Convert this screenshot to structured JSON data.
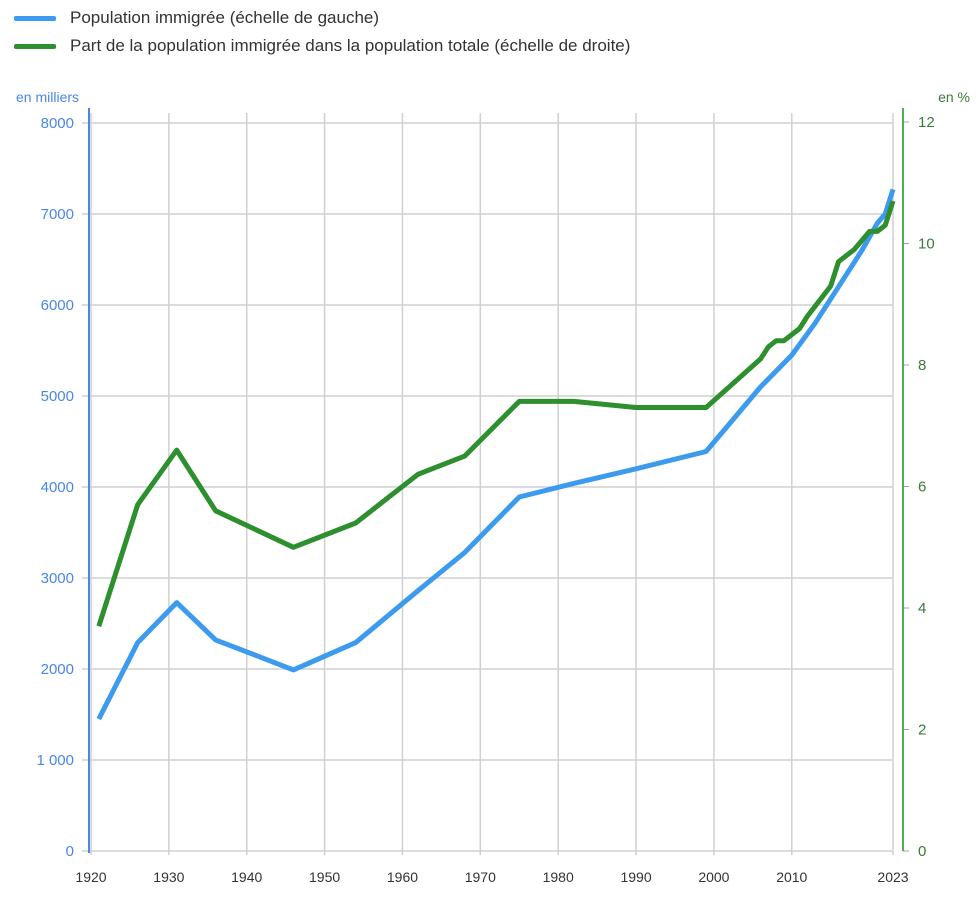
{
  "chart_data": {
    "type": "line",
    "title": "",
    "xlabel": "",
    "ylabel_left": "en milliers",
    "ylabel_right": "en %",
    "xlim": [
      1920,
      2023
    ],
    "ylim_left": [
      0,
      8000
    ],
    "ylim_right": [
      0,
      12
    ],
    "x_ticks": [
      "1920",
      "1930",
      "1940",
      "1950",
      "1960",
      "1970",
      "1980",
      "1990",
      "2000",
      "2010",
      "2023"
    ],
    "y_ticks_left": [
      "0",
      "1 000",
      "2000",
      "3000",
      "4000",
      "5000",
      "6000",
      "7000",
      "8000"
    ],
    "y_ticks_right": [
      "0",
      "2",
      "4",
      "6",
      "8",
      "10",
      "12"
    ],
    "grid": true,
    "legend_position": "top-left",
    "series": [
      {
        "name": "Population immigrée (échelle de gauche)",
        "axis": "left",
        "color": "#3d9bef",
        "x": [
          1921,
          1926,
          1931,
          1936,
          1946,
          1954,
          1962,
          1968,
          1975,
          1982,
          1990,
          1999,
          2006,
          2010,
          2013,
          2016,
          2019,
          2021,
          2022,
          2023
        ],
        "values": [
          1450,
          2290,
          2730,
          2320,
          1990,
          2290,
          2860,
          3280,
          3890,
          4040,
          4200,
          4390,
          5100,
          5450,
          5800,
          6200,
          6600,
          6900,
          7000,
          7270
        ]
      },
      {
        "name": "Part de la population immigrée dans la population totale (échelle de droite)",
        "axis": "right",
        "color": "#2e8f2e",
        "x": [
          1921,
          1926,
          1931,
          1936,
          1946,
          1954,
          1962,
          1968,
          1975,
          1982,
          1990,
          1999,
          2006,
          2007,
          2008,
          2009,
          2011,
          2012,
          2015,
          2016,
          2018,
          2020,
          2021,
          2022,
          2023
        ],
        "values": [
          3.7,
          5.7,
          6.6,
          5.6,
          5.0,
          5.4,
          6.2,
          6.5,
          7.4,
          7.4,
          7.3,
          7.3,
          8.1,
          8.3,
          8.4,
          8.4,
          8.6,
          8.8,
          9.3,
          9.7,
          9.9,
          10.2,
          10.2,
          10.3,
          10.7
        ]
      }
    ]
  },
  "colors": {
    "left_axis": "#4a86e8",
    "right_axis": "#4caf50",
    "grid": "#d0d0d0"
  }
}
